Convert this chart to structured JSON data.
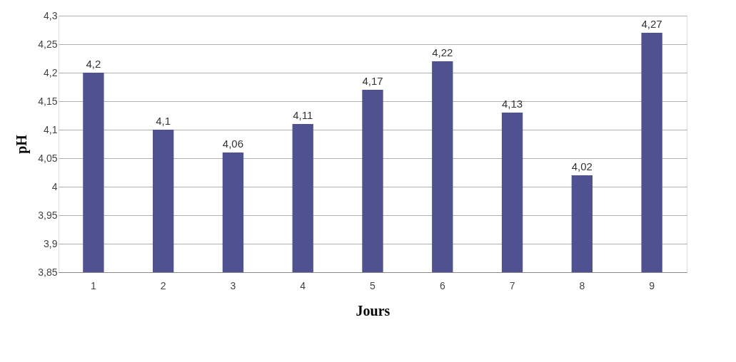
{
  "chart_data": {
    "type": "bar",
    "xlabel": "Jours",
    "ylabel": "pH",
    "categories": [
      "1",
      "2",
      "3",
      "4",
      "5",
      "6",
      "7",
      "8",
      "9"
    ],
    "values": [
      4.2,
      4.1,
      4.06,
      4.11,
      4.17,
      4.22,
      4.13,
      4.02,
      4.27
    ],
    "value_labels": [
      "4,2",
      "4,1",
      "4,06",
      "4,11",
      "4,17",
      "4,22",
      "4,13",
      "4,02",
      "4,27"
    ],
    "color": "#4f5190",
    "ylim": [
      3.85,
      4.3
    ],
    "yticks": [
      {
        "value": 3.85,
        "label": "3,85"
      },
      {
        "value": 3.9,
        "label": "3,9"
      },
      {
        "value": 3.95,
        "label": "3,95"
      },
      {
        "value": 4,
        "label": "4"
      },
      {
        "value": 4.05,
        "label": "4,05"
      },
      {
        "value": 4.1,
        "label": "4,1"
      },
      {
        "value": 4.15,
        "label": "4,15"
      },
      {
        "value": 4.2,
        "label": "4,2"
      },
      {
        "value": 4.25,
        "label": "4,25"
      },
      {
        "value": 4.3,
        "label": "4,3"
      }
    ],
    "grid": "y"
  }
}
